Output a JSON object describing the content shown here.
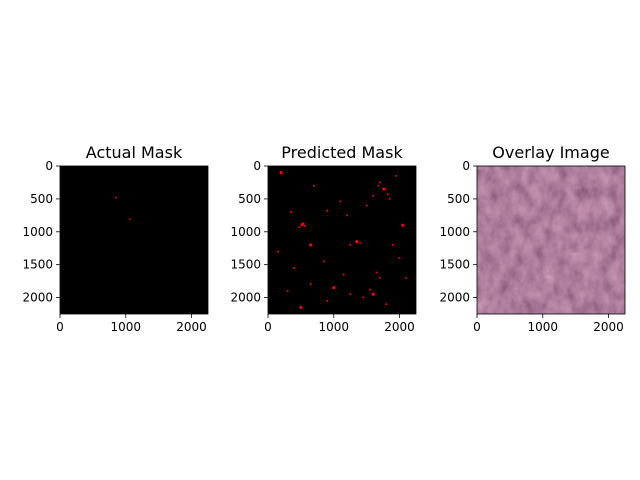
{
  "chart_data": [
    {
      "type": "heatmap",
      "title": "Actual Mask",
      "colormap": "black-red",
      "background_color": "#000000",
      "mark_color": "#ff0000",
      "xlim": [
        0,
        2250
      ],
      "ylim": [
        2250,
        0
      ],
      "xticks": [
        0,
        1000,
        2000
      ],
      "yticks": [
        0,
        500,
        1000,
        1500,
        2000
      ],
      "xtick_labels": [
        "0",
        "1000",
        "2000"
      ],
      "ytick_labels": [
        "0",
        "500",
        "1000",
        "1500",
        "2000"
      ],
      "mask_points": [
        [
          850,
          480
        ],
        [
          1060,
          810
        ]
      ]
    },
    {
      "type": "heatmap",
      "title": "Predicted Mask",
      "colormap": "black-red",
      "background_color": "#000000",
      "mark_color": "#ff0000",
      "xlim": [
        0,
        2250
      ],
      "ylim": [
        2250,
        0
      ],
      "xticks": [
        0,
        1000,
        2000
      ],
      "yticks": [
        0,
        500,
        1000,
        1500,
        2000
      ],
      "xtick_labels": [
        "0",
        "1000",
        "2000"
      ],
      "ytick_labels": [
        "0",
        "500",
        "1000",
        "1500",
        "2000"
      ],
      "mask_points": [
        [
          520,
          890
        ],
        [
          560,
          910
        ],
        [
          480,
          930
        ],
        [
          540,
          870
        ],
        [
          1680,
          300
        ],
        [
          1760,
          350
        ],
        [
          1820,
          430
        ],
        [
          1850,
          500
        ],
        [
          1700,
          250
        ],
        [
          1600,
          450
        ],
        [
          1350,
          1150
        ],
        [
          1400,
          1170
        ],
        [
          1250,
          1200
        ],
        [
          900,
          680
        ],
        [
          1100,
          540
        ],
        [
          650,
          1200
        ],
        [
          400,
          1550
        ],
        [
          1650,
          1620
        ],
        [
          1700,
          1700
        ],
        [
          1550,
          1880
        ],
        [
          1600,
          1950
        ],
        [
          1450,
          2000
        ],
        [
          900,
          2050
        ],
        [
          300,
          1900
        ],
        [
          2000,
          1400
        ],
        [
          200,
          100
        ],
        [
          700,
          300
        ],
        [
          1200,
          750
        ],
        [
          1900,
          1200
        ],
        [
          2100,
          1700
        ],
        [
          1000,
          1850
        ],
        [
          1250,
          1950
        ],
        [
          650,
          1800
        ],
        [
          150,
          1300
        ],
        [
          850,
          1450
        ],
        [
          2050,
          900
        ],
        [
          1500,
          600
        ],
        [
          350,
          700
        ],
        [
          1950,
          150
        ],
        [
          1150,
          1650
        ],
        [
          500,
          2150
        ],
        [
          1800,
          2100
        ]
      ]
    },
    {
      "type": "heatmap",
      "title": "Overlay Image",
      "colormap": "rgb",
      "background_color": "#6e3550",
      "xlim": [
        0,
        2250
      ],
      "ylim": [
        2250,
        0
      ],
      "xticks": [
        0,
        1000,
        2000
      ],
      "yticks": [
        0,
        500,
        1000,
        1500,
        2000
      ],
      "xtick_labels": [
        "0",
        "1000",
        "2000"
      ],
      "ytick_labels": [
        "0",
        "500",
        "1000",
        "1500",
        "2000"
      ]
    }
  ]
}
